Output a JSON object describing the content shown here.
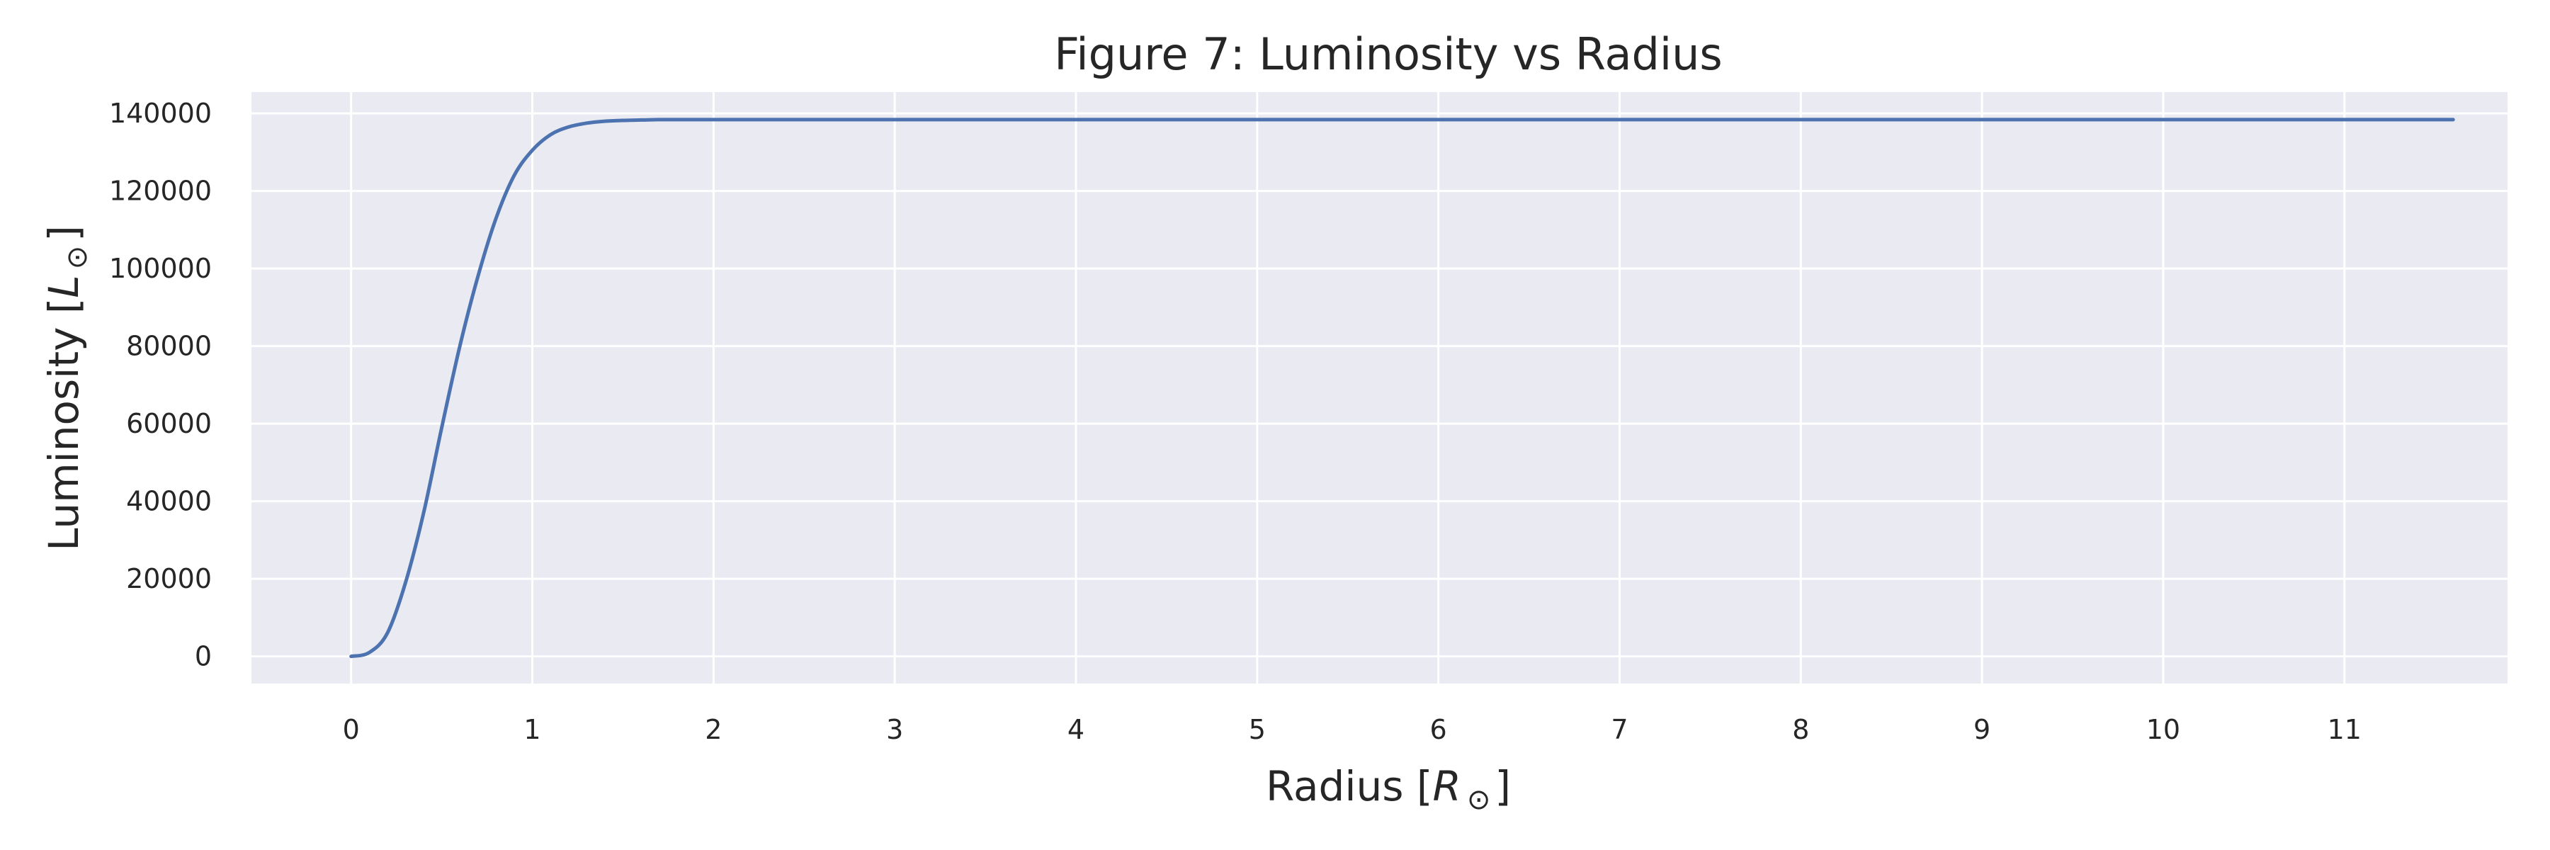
{
  "chart_data": {
    "type": "line",
    "title": "Figure 7: Luminosity vs Radius",
    "xlabel": {
      "main": "Radius [",
      "symbol": "R",
      "sub": "⊙",
      "end": "]"
    },
    "ylabel": {
      "main": "Luminosity [",
      "symbol": "L",
      "sub": "⊙",
      "end": "]"
    },
    "xlim": [
      -0.55,
      11.9
    ],
    "ylim": [
      -7000,
      145500
    ],
    "x_ticks": [
      0,
      1,
      2,
      3,
      4,
      5,
      6,
      7,
      8,
      9,
      10,
      11
    ],
    "x_tick_labels": [
      "0",
      "1",
      "2",
      "3",
      "4",
      "5",
      "6",
      "7",
      "8",
      "9",
      "10",
      "11"
    ],
    "y_ticks": [
      0,
      20000,
      40000,
      60000,
      80000,
      100000,
      120000,
      140000
    ],
    "y_tick_labels": [
      "0",
      "20000",
      "40000",
      "60000",
      "80000",
      "100000",
      "120000",
      "140000"
    ],
    "grid": true,
    "legend": "none",
    "colors": {
      "background": "#eaeaf2",
      "grid": "#ffffff",
      "line": "#4c72b0"
    },
    "series": [
      {
        "x": [
          0,
          0.1,
          0.2,
          0.3,
          0.4,
          0.5,
          0.6,
          0.7,
          0.8,
          0.9,
          1.0,
          1.1,
          1.2,
          1.3,
          1.4,
          1.5,
          1.6,
          1.7,
          1.8,
          2.0,
          3.0,
          4.0,
          5.0,
          6.0,
          7.0,
          8.0,
          9.0,
          10.0,
          11.0,
          11.6
        ],
        "y": [
          0,
          1000,
          6000,
          19000,
          37000,
          59000,
          80000,
          98000,
          113000,
          124000,
          130500,
          134500,
          136500,
          137500,
          138000,
          138200,
          138300,
          138400,
          138400,
          138400,
          138400,
          138400,
          138400,
          138400,
          138400,
          138400,
          138400,
          138400,
          138400,
          138400
        ]
      }
    ]
  }
}
